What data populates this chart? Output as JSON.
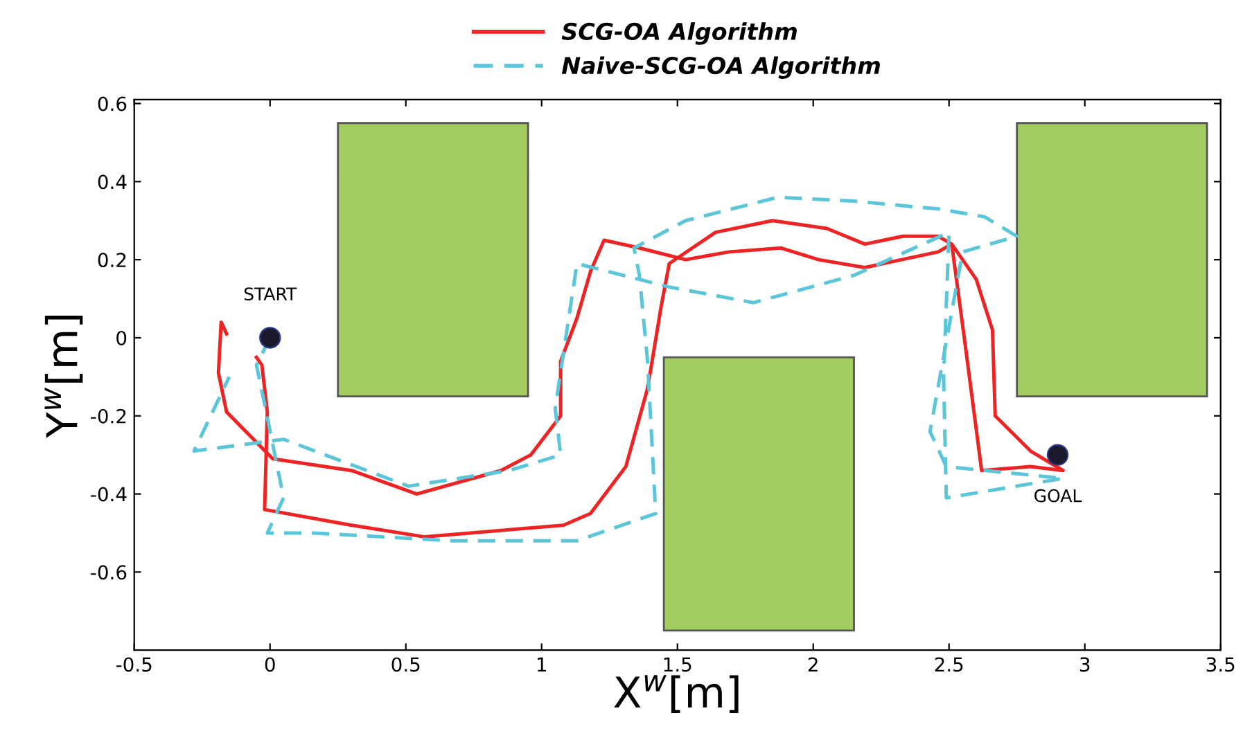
{
  "chart_data": {
    "type": "line",
    "xlabel": "X$^{w}$[m]",
    "ylabel": "Y$^{w}$[m]",
    "xlim": [
      -0.5,
      3.5
    ],
    "ylim": [
      -0.8,
      0.61
    ],
    "xticks": [
      -0.5,
      0,
      0.5,
      1,
      1.5,
      2,
      2.5,
      3,
      3.5
    ],
    "yticks": [
      -0.6,
      -0.4,
      -0.2,
      0,
      0.2,
      0.4,
      0.6
    ],
    "legend": "top",
    "series": [
      {
        "name": "SCG-OA Algorithm",
        "color": "#ee2424",
        "line_style": "solid",
        "x": [
          -0.05,
          -0.03,
          -0.01,
          -0.02,
          0.3,
          0.57,
          1.08,
          1.18,
          1.31,
          1.39,
          1.44,
          1.47,
          1.64,
          1.85,
          2.05,
          2.19,
          2.33,
          2.46,
          2.51,
          2.6,
          2.66,
          2.67,
          2.8,
          2.92,
          2.8,
          2.62,
          2.56,
          2.51,
          2.46,
          2.19,
          2.02,
          1.88,
          1.69,
          1.53,
          1.36,
          1.23,
          1.18,
          1.13,
          1.07,
          1.07,
          0.96,
          0.85,
          0.54,
          0.3,
          0.01,
          -0.16,
          -0.19,
          -0.18,
          -0.16
        ],
        "values": [
          -0.05,
          -0.07,
          -0.19,
          -0.44,
          -0.48,
          -0.51,
          -0.48,
          -0.45,
          -0.33,
          -0.13,
          0.08,
          0.19,
          0.27,
          0.3,
          0.28,
          0.24,
          0.26,
          0.26,
          0.24,
          0.15,
          0.02,
          -0.2,
          -0.29,
          -0.34,
          -0.33,
          -0.34,
          -0.02,
          0.24,
          0.22,
          0.18,
          0.2,
          0.23,
          0.22,
          0.2,
          0.23,
          0.25,
          0.17,
          0.05,
          -0.06,
          -0.2,
          -0.3,
          -0.34,
          -0.4,
          -0.34,
          -0.31,
          -0.19,
          -0.09,
          0.04,
          0.01
        ]
      },
      {
        "name": "Naive-SCG-OA Algorithm",
        "color": "#5bc5d9",
        "line_style": "dashed",
        "x": [
          0,
          -0.05,
          -0.02,
          0.05,
          -0.01,
          0.16,
          0.67,
          1.13,
          1.42,
          1.39,
          1.36,
          1.34,
          1.53,
          1.87,
          2.15,
          2.46,
          2.63,
          2.75,
          2.55,
          2.43,
          2.49,
          2.92,
          2.49,
          2.48,
          2.5,
          2.15,
          1.78,
          1.47,
          1.13,
          1.05,
          1.07,
          0.88,
          0.51,
          0.05,
          -0.28,
          -0.15
        ],
        "values": [
          0,
          -0.07,
          -0.17,
          -0.41,
          -0.5,
          -0.5,
          -0.52,
          -0.52,
          -0.45,
          -0.06,
          0.16,
          0.23,
          0.3,
          0.36,
          0.35,
          0.33,
          0.31,
          0.26,
          0.22,
          -0.24,
          -0.33,
          -0.36,
          -0.41,
          -0.1,
          0.27,
          0.16,
          0.09,
          0.13,
          0.19,
          -0.18,
          -0.3,
          -0.34,
          -0.38,
          -0.26,
          -0.29,
          -0.1
        ]
      },
      {
        "type": "scatter",
        "color": "#1a1a2a",
        "marker": "circle",
        "x": [
          0,
          2.9
        ],
        "values": [
          0,
          -0.3
        ]
      }
    ],
    "annotations": [
      {
        "text": "START",
        "x": 0,
        "y": 0
      },
      {
        "text": "GOAL",
        "x": 2.9,
        "y": -0.3
      }
    ]
  }
}
